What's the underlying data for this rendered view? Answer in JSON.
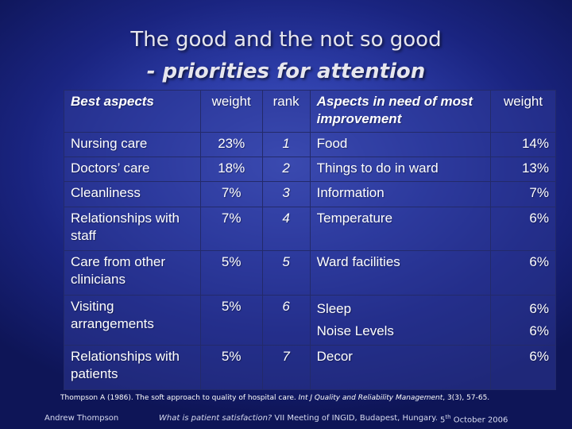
{
  "title": {
    "line1": "The good and the not so good",
    "line2": "- priorities for attention"
  },
  "table": {
    "headers": {
      "best_aspects": "Best aspects",
      "weight_left": "weight",
      "rank": "rank",
      "aspects_need": "Aspects in need of most improvement",
      "weight_right": "weight"
    },
    "rows": [
      {
        "best": "Nursing care",
        "w1": "23%",
        "rank": "1",
        "need": "Food",
        "w2": "14%"
      },
      {
        "best": "Doctors’ care",
        "w1": "18%",
        "rank": "2",
        "need": "Things to do in ward",
        "w2": "13%"
      },
      {
        "best": "Cleanliness",
        "w1": "7%",
        "rank": "3",
        "need": "Information",
        "w2": "7%"
      },
      {
        "best": "Relationships with staff",
        "w1": "7%",
        "rank": "4",
        "need": "Temperature",
        "w2": "6%"
      },
      {
        "best": "Care from other clinicians",
        "w1": "5%",
        "rank": "5",
        "need": "Ward facilities",
        "w2": "6%"
      },
      {
        "best": "Visiting arrangements",
        "w1": "5%",
        "rank": "6",
        "need": "Sleep",
        "need2": "Noise Levels",
        "w2": "6%",
        "w2b": "6%"
      },
      {
        "best": "Relationships with patients",
        "w1": "5%",
        "rank": "7",
        "need": "Decor",
        "w2": "6%"
      }
    ]
  },
  "citation": {
    "text": "Thompson A (1986). The soft approach to quality of hospital care.",
    "journal": "Int J Quality and Reliability Management",
    "volume": ", 3(3), 57-65."
  },
  "footer": {
    "author": "Andrew Thompson",
    "talk_title": "What is patient satisfaction?",
    "meeting": " VII Meeting of INGID, Budapest, Hungary.",
    "date_day": "5",
    "date_sup": "th",
    "date_rest": " October 2006"
  }
}
